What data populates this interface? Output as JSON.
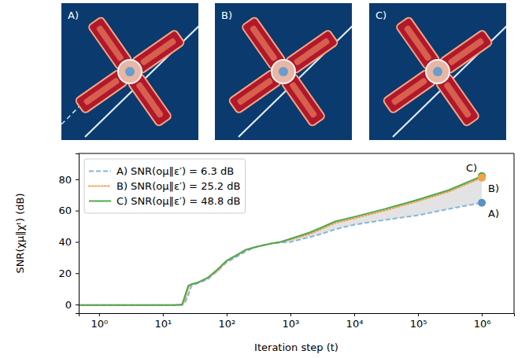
{
  "panels": {
    "labels": [
      "A)",
      "B)",
      "C)"
    ]
  },
  "chart_data": {
    "type": "line",
    "x_label": "Iteration step (t)",
    "y_label": "SNR(χμ‖χᵗ) (dB)",
    "log": "x",
    "grid": false,
    "legend": "upper left",
    "xlim": [
      0.48,
      3200000
    ],
    "ylim": [
      -5.5,
      96.5
    ],
    "xticks": [
      {
        "value": 1,
        "label": "10⁰"
      },
      {
        "value": 10,
        "label": "10¹"
      },
      {
        "value": 100,
        "label": "10²"
      },
      {
        "value": 1000,
        "label": "10³"
      },
      {
        "value": 10000,
        "label": "10⁴"
      },
      {
        "value": 100000,
        "label": "10⁵"
      },
      {
        "value": 1000000,
        "label": "10⁶"
      }
    ],
    "yticks": [
      0,
      20,
      40,
      60,
      80
    ],
    "x": [
      0.5,
      1,
      2,
      5,
      10,
      15,
      20,
      22,
      25,
      28,
      35,
      50,
      70,
      100,
      150,
      200,
      300,
      500,
      700,
      1000,
      2000,
      3000,
      5000,
      10000,
      30000,
      100000,
      300000,
      1000000
    ],
    "series": [
      {
        "name": "A) SNR(oμ‖ε′) = 6.3 dB",
        "color": "#86b4da",
        "line_style": "dashed",
        "values": [
          -0.4,
          -0.4,
          -0.4,
          -0.4,
          -0.4,
          -0.4,
          -0.3,
          1,
          6,
          12,
          13.5,
          16,
          21,
          27,
          31,
          34,
          37,
          39,
          39.5,
          40,
          43,
          45,
          48,
          51,
          54,
          57,
          61,
          65
        ]
      },
      {
        "name": "B) SNR(oμ‖ε′) = 25.2 dB",
        "color": "#f5a04a",
        "line_style": "dotted",
        "values": [
          -0.4,
          -0.4,
          -0.4,
          -0.4,
          -0.4,
          -0.4,
          0,
          3,
          11,
          13,
          14,
          17,
          21,
          28,
          32,
          35,
          37,
          39,
          40,
          41.5,
          45,
          48,
          52,
          55,
          60,
          66,
          72,
          81
        ]
      },
      {
        "name": "C) SNR(oμ‖ε′) = 48.8 dB",
        "color": "#4fa84f",
        "line_style": "solid",
        "values": [
          -0.4,
          -0.4,
          -0.4,
          -0.4,
          -0.4,
          -0.4,
          0,
          5,
          12,
          13,
          14,
          17,
          22,
          28,
          32,
          35,
          37,
          39,
          40,
          42,
          46,
          49,
          53,
          56,
          61,
          67,
          73,
          82
        ]
      }
    ],
    "annotations": [
      {
        "text": "C)",
        "x": 1000000,
        "y": 82,
        "color": "#4fa84f"
      },
      {
        "text": "B)",
        "x": 1000000,
        "y": 81,
        "color": "#f5a04a"
      },
      {
        "text": "A)",
        "x": 1000000,
        "y": 65,
        "color": "#5b93c4"
      }
    ]
  }
}
